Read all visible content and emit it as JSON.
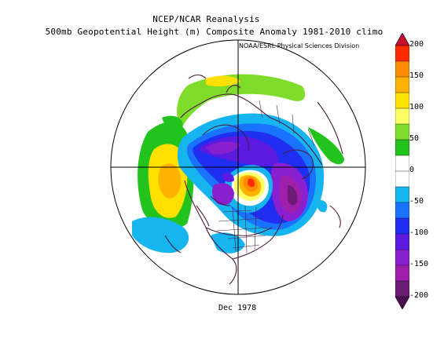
{
  "header": {
    "title": "NCEP/NCAR Reanalysis",
    "subtitle": "500mb Geopotential Height (m) Composite Anomaly 1981-2010 climo",
    "credit": "NOAA/ESRL Physical Sciences Division"
  },
  "map": {
    "projection": "north-polar-stereographic",
    "date_label": "Dec 1978"
  },
  "colorbar": {
    "ticks": [
      "200",
      "150",
      "100",
      "50",
      "0",
      "-50",
      "-100",
      "-150",
      "-200"
    ],
    "colors": [
      "#c8102e",
      "#ff2a00",
      "#ff8c00",
      "#ffb300",
      "#ffe000",
      "#ffff66",
      "#7fdc2a",
      "#22c31c",
      "#ffffff",
      "#ffffff",
      "#17b5ef",
      "#1a73ff",
      "#1f2ef0",
      "#5a1adf",
      "#8a1fcf",
      "#9f1faa",
      "#6e1b75",
      "#4a0d4e"
    ]
  }
}
